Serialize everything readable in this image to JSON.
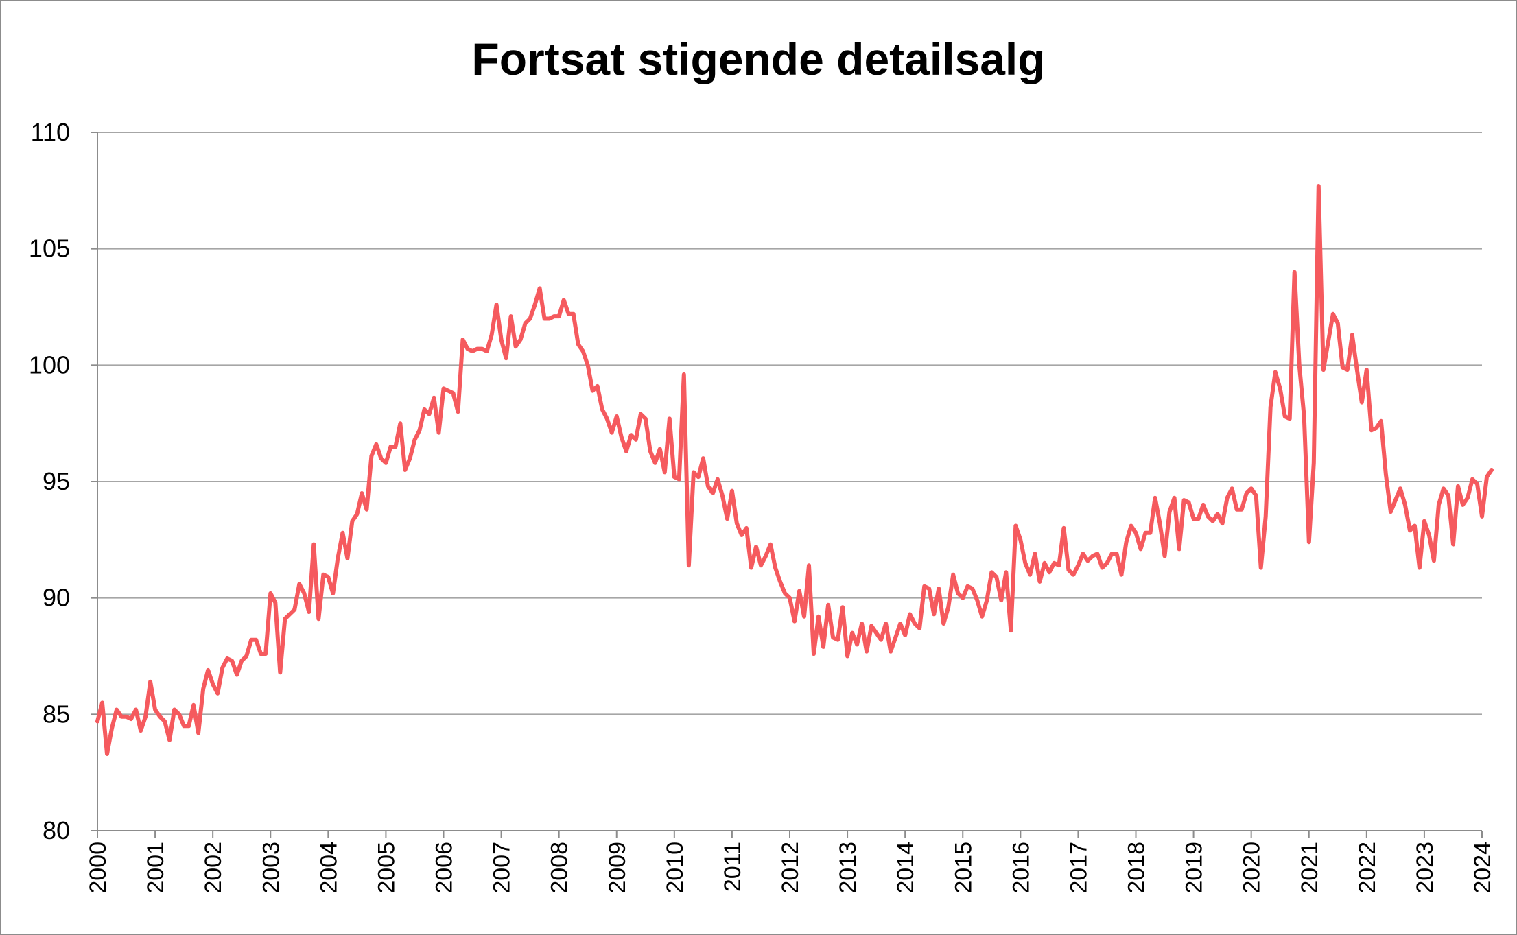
{
  "chart_data": {
    "type": "line",
    "title": "Fortsat stigende detailsalg",
    "xlabel": "",
    "ylabel": "",
    "ylim": [
      80,
      110
    ],
    "yticks": [
      80,
      85,
      90,
      95,
      100,
      105,
      110
    ],
    "xticks": [
      "2000",
      "2001",
      "2002",
      "2003",
      "2004",
      "2005",
      "2006",
      "2007",
      "2008",
      "2009",
      "2010",
      "2011",
      "2012",
      "2013",
      "2014",
      "2015",
      "2016",
      "2017",
      "2018",
      "2019",
      "2020",
      "2021",
      "2022",
      "2023",
      "2024"
    ],
    "x_start": "2000-01",
    "frequency": "monthly",
    "grid": true,
    "legend": "none",
    "colors": {
      "line": "#f55a5e",
      "grid": "#a6a6a6",
      "axis": "#8c8c8c"
    },
    "series": [
      {
        "values": [
          84.7,
          85.5,
          83.3,
          84.4,
          85.2,
          84.9,
          84.9,
          84.8,
          85.2,
          84.3,
          84.9,
          86.4,
          85.2,
          84.9,
          84.7,
          83.9,
          85.2,
          85.0,
          84.5,
          84.5,
          85.4,
          84.2,
          86.1,
          86.9,
          86.3,
          85.9,
          87.0,
          87.4,
          87.3,
          86.7,
          87.3,
          87.5,
          88.2,
          88.2,
          87.6,
          87.6,
          90.2,
          89.8,
          86.8,
          89.1,
          89.3,
          89.5,
          90.6,
          90.2,
          89.4,
          92.3,
          89.1,
          91.0,
          90.9,
          90.2,
          91.7,
          92.8,
          91.7,
          93.3,
          93.6,
          94.5,
          93.8,
          96.1,
          96.6,
          96.0,
          95.8,
          96.5,
          96.5,
          97.5,
          95.5,
          96.0,
          96.8,
          97.2,
          98.1,
          97.9,
          98.6,
          97.1,
          99.0,
          98.9,
          98.8,
          98.0,
          101.1,
          100.7,
          100.6,
          100.7,
          100.7,
          100.6,
          101.3,
          102.6,
          101.1,
          100.3,
          102.1,
          100.8,
          101.1,
          101.8,
          102.0,
          102.6,
          103.3,
          102.0,
          102.0,
          102.1,
          102.1,
          102.8,
          102.2,
          102.2,
          100.9,
          100.6,
          100.0,
          98.9,
          99.1,
          98.1,
          97.7,
          97.1,
          97.8,
          96.9,
          96.3,
          97.0,
          96.8,
          97.9,
          97.7,
          96.3,
          95.8,
          96.4,
          95.4,
          97.7,
          95.2,
          95.1,
          99.6,
          91.4,
          95.4,
          95.2,
          96.0,
          94.8,
          94.5,
          95.1,
          94.4,
          93.4,
          94.6,
          93.2,
          92.7,
          93.0,
          91.3,
          92.2,
          91.4,
          91.8,
          92.3,
          91.3,
          90.7,
          90.2,
          90.0,
          89.0,
          90.3,
          89.2,
          91.4,
          87.6,
          89.2,
          87.9,
          89.7,
          88.3,
          88.2,
          89.6,
          87.5,
          88.5,
          88.0,
          88.9,
          87.7,
          88.8,
          88.5,
          88.2,
          88.9,
          87.7,
          88.3,
          88.9,
          88.4,
          89.3,
          88.9,
          88.7,
          90.5,
          90.4,
          89.3,
          90.4,
          88.9,
          89.6,
          91.0,
          90.2,
          90.0,
          90.5,
          90.4,
          89.9,
          89.2,
          89.9,
          91.1,
          90.9,
          89.9,
          91.1,
          88.6,
          93.1,
          92.5,
          91.5,
          91.0,
          91.9,
          90.7,
          91.5,
          91.1,
          91.5,
          91.4,
          93.0,
          91.2,
          91.0,
          91.4,
          91.9,
          91.6,
          91.8,
          91.9,
          91.3,
          91.5,
          91.9,
          91.9,
          91.0,
          92.4,
          93.1,
          92.8,
          92.1,
          92.8,
          92.8,
          94.3,
          93.2,
          91.8,
          93.7,
          94.3,
          92.1,
          94.2,
          94.1,
          93.4,
          93.4,
          94.0,
          93.5,
          93.3,
          93.6,
          93.2,
          94.3,
          94.7,
          93.8,
          93.8,
          94.5,
          94.7,
          94.4,
          91.3,
          93.5,
          98.2,
          99.7,
          99.0,
          97.8,
          97.7,
          104.0,
          100.0,
          97.8,
          92.4,
          95.8,
          107.7,
          99.8,
          101.0,
          102.2,
          101.8,
          99.9,
          99.8,
          101.3,
          99.8,
          98.4,
          99.8,
          97.2,
          97.3,
          97.6,
          95.3,
          93.7,
          94.2,
          94.7,
          94.0,
          92.9,
          93.1,
          91.3,
          93.3,
          92.7,
          91.6,
          94.0,
          94.7,
          94.4,
          92.3,
          94.8,
          94.0,
          94.3,
          95.1,
          94.9,
          93.5,
          95.2,
          95.5
        ]
      }
    ]
  }
}
